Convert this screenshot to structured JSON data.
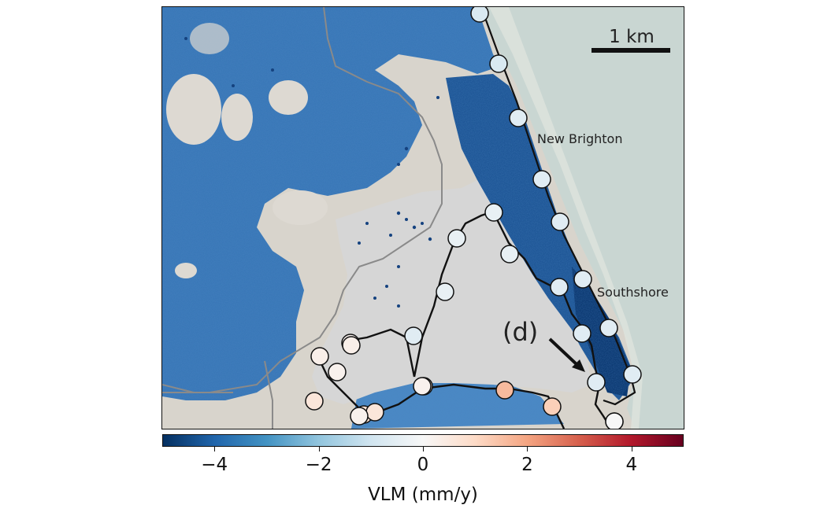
{
  "map": {
    "scale_bar_label": "1 km",
    "place_labels": [
      "New Brighton",
      "Southshore"
    ],
    "annotation_label": "(d)",
    "colors": {
      "land_bg": "#ddd9d2",
      "sea": "#c9d6d2",
      "coast_line": "#111111",
      "road_line": "#8a8a8a",
      "estuary": "#d6d6d6"
    }
  },
  "colorbar": {
    "title": "VLM (mm/y)",
    "min": -5,
    "max": 5,
    "ticks": [
      {
        "value": -4,
        "label": "−4"
      },
      {
        "value": -2,
        "label": "−2"
      },
      {
        "value": 0,
        "label": "0"
      },
      {
        "value": 2,
        "label": "2"
      },
      {
        "value": 4,
        "label": "4"
      }
    ],
    "colormap": "RdBu_r"
  },
  "chart_data": {
    "type": "other",
    "colorbar_range": [
      -5,
      5
    ],
    "colorbar_title": "VLM (mm/y)",
    "colorbar_ticks": [
      -4,
      -2,
      0,
      2,
      4
    ],
    "circle_marker_values": [
      -0.8,
      -0.8,
      -0.6,
      -0.6,
      -0.6,
      -0.6,
      -0.6,
      -0.6,
      -0.4,
      -0.4,
      -0.4,
      -0.6,
      -0.6,
      -0.6,
      -0.4,
      -0.4,
      -0.6,
      0.2,
      0.3,
      0.2,
      0.6,
      0.7,
      0.6,
      0.7,
      1.6,
      1.2,
      0.2,
      0.3,
      0.2,
      0.0
    ]
  }
}
